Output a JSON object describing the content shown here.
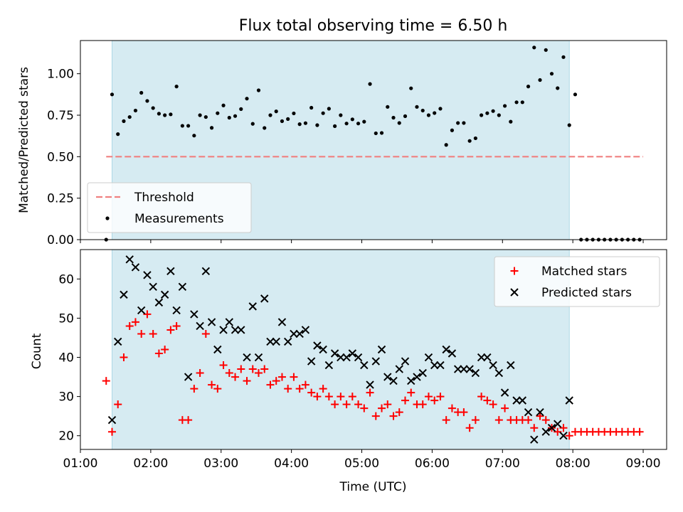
{
  "chart_data": [
    {
      "type": "scatter",
      "title": "Flux total observing time = 6.50 h",
      "xlabel": "",
      "ylabel": "Matched/Predicted stars",
      "xlim": [
        "01:00",
        "09:20"
      ],
      "ylim": [
        0,
        1.2
      ],
      "yticks": [
        {
          "value": 0.0,
          "label": "0.00"
        },
        {
          "value": 0.25,
          "label": "0.25"
        },
        {
          "value": 0.5,
          "label": "0.50"
        },
        {
          "value": 0.75,
          "label": "0.75"
        },
        {
          "value": 1.0,
          "label": "1.00"
        }
      ],
      "observing_window": {
        "start": "01:27",
        "end": "07:57",
        "color": "#add8e6"
      },
      "threshold": {
        "name": "Threshold",
        "value": 0.5,
        "start": "01:22",
        "end": "09:00",
        "color": "#f08080",
        "style": "dashed"
      },
      "series": [
        {
          "name": "Measurements",
          "color": "#000000",
          "marker": "dot",
          "x": [
            "01:22",
            "01:27",
            "01:32",
            "01:37",
            "01:42",
            "01:47",
            "01:52",
            "01:57",
            "02:02",
            "02:07",
            "02:12",
            "02:17",
            "02:22",
            "02:27",
            "02:32",
            "02:37",
            "02:42",
            "02:47",
            "02:52",
            "02:57",
            "03:02",
            "03:07",
            "03:12",
            "03:17",
            "03:22",
            "03:27",
            "03:32",
            "03:37",
            "03:42",
            "03:47",
            "03:52",
            "03:57",
            "04:02",
            "04:07",
            "04:12",
            "04:17",
            "04:22",
            "04:27",
            "04:32",
            "04:37",
            "04:42",
            "04:47",
            "04:52",
            "04:57",
            "05:02",
            "05:07",
            "05:12",
            "05:17",
            "05:22",
            "05:27",
            "05:32",
            "05:37",
            "05:42",
            "05:47",
            "05:52",
            "05:57",
            "06:02",
            "06:07",
            "06:12",
            "06:17",
            "06:22",
            "06:27",
            "06:32",
            "06:37",
            "06:42",
            "06:47",
            "06:52",
            "06:57",
            "07:02",
            "07:07",
            "07:12",
            "07:17",
            "07:22",
            "07:27",
            "07:32",
            "07:37",
            "07:42",
            "07:47",
            "07:52",
            "07:57",
            "08:02",
            "08:07",
            "08:12",
            "08:17",
            "08:22",
            "08:27",
            "08:32",
            "08:37",
            "08:42",
            "08:47",
            "08:52",
            "08:57"
          ],
          "y": [
            0.0,
            0.875,
            0.636,
            0.714,
            0.739,
            0.778,
            0.885,
            0.836,
            0.793,
            0.759,
            0.75,
            0.755,
            0.923,
            0.686,
            0.686,
            0.627,
            0.75,
            0.739,
            0.674,
            0.762,
            0.809,
            0.735,
            0.745,
            0.787,
            0.85,
            0.698,
            0.9,
            0.673,
            0.75,
            0.773,
            0.714,
            0.727,
            0.761,
            0.696,
            0.702,
            0.795,
            0.69,
            0.762,
            0.789,
            0.684,
            0.75,
            0.7,
            0.725,
            0.7,
            0.711,
            0.938,
            0.641,
            0.643,
            0.8,
            0.735,
            0.703,
            0.744,
            0.912,
            0.8,
            0.778,
            0.75,
            0.763,
            0.789,
            0.571,
            0.659,
            0.703,
            0.703,
            0.595,
            0.611,
            0.75,
            0.762,
            0.775,
            0.75,
            0.806,
            0.711,
            0.828,
            0.828,
            0.923,
            1.158,
            0.962,
            1.143,
            1.0,
            0.913,
            1.1,
            0.69,
            0.875,
            0.0,
            0.0,
            0.0,
            0.0,
            0.0,
            0.0,
            0.0,
            0.0,
            0.0,
            0.0,
            0.0
          ]
        }
      ],
      "legend": {
        "placement": "lower-left",
        "entries": [
          "Threshold",
          "Measurements"
        ]
      }
    },
    {
      "type": "scatter",
      "title": "",
      "xlabel": "Time (UTC)",
      "ylabel": "Count",
      "xlim": [
        "01:00",
        "09:20"
      ],
      "ylim": [
        16.5,
        67.5
      ],
      "yticks": [
        {
          "value": 20,
          "label": "20"
        },
        {
          "value": 30,
          "label": "30"
        },
        {
          "value": 40,
          "label": "40"
        },
        {
          "value": 50,
          "label": "50"
        },
        {
          "value": 60,
          "label": "60"
        }
      ],
      "xticks": [
        "01:00",
        "02:00",
        "03:00",
        "04:00",
        "05:00",
        "06:00",
        "07:00",
        "08:00",
        "09:00"
      ],
      "observing_window": {
        "start": "01:27",
        "end": "07:57",
        "color": "#add8e6"
      },
      "series": [
        {
          "name": "Matched stars",
          "color": "#ff0000",
          "marker": "plus",
          "x": [
            "01:22",
            "01:27",
            "01:32",
            "01:37",
            "01:42",
            "01:47",
            "01:52",
            "01:57",
            "02:02",
            "02:07",
            "02:12",
            "02:17",
            "02:22",
            "02:27",
            "02:32",
            "02:37",
            "02:42",
            "02:47",
            "02:52",
            "02:57",
            "03:02",
            "03:07",
            "03:12",
            "03:17",
            "03:22",
            "03:27",
            "03:32",
            "03:37",
            "03:42",
            "03:47",
            "03:52",
            "03:57",
            "04:02",
            "04:07",
            "04:12",
            "04:17",
            "04:22",
            "04:27",
            "04:32",
            "04:37",
            "04:42",
            "04:47",
            "04:52",
            "04:57",
            "05:02",
            "05:07",
            "05:12",
            "05:17",
            "05:22",
            "05:27",
            "05:32",
            "05:37",
            "05:42",
            "05:47",
            "05:52",
            "05:57",
            "06:02",
            "06:07",
            "06:12",
            "06:17",
            "06:22",
            "06:27",
            "06:32",
            "06:37",
            "06:42",
            "06:47",
            "06:52",
            "06:57",
            "07:02",
            "07:07",
            "07:12",
            "07:17",
            "07:22",
            "07:27",
            "07:32",
            "07:37",
            "07:42",
            "07:47",
            "07:52",
            "07:57",
            "08:02",
            "08:07",
            "08:12",
            "08:17",
            "08:22",
            "08:27",
            "08:32",
            "08:37",
            "08:42",
            "08:47",
            "08:52",
            "08:57"
          ],
          "y": [
            34,
            21,
            28,
            40,
            48,
            49,
            46,
            51,
            46,
            41,
            42,
            47,
            48,
            24,
            24,
            32,
            36,
            46,
            33,
            32,
            38,
            36,
            35,
            37,
            34,
            37,
            36,
            37,
            33,
            34,
            35,
            32,
            35,
            32,
            33,
            31,
            30,
            32,
            30,
            28,
            30,
            28,
            30,
            28,
            27,
            31,
            25,
            27,
            28,
            25,
            26,
            29,
            31,
            28,
            28,
            30,
            29,
            30,
            24,
            27,
            26,
            26,
            22,
            24,
            30,
            29,
            28,
            24,
            27,
            24,
            24,
            24,
            24,
            22,
            25,
            24,
            22,
            21,
            22,
            20,
            21,
            21,
            21,
            21,
            21,
            21,
            21,
            21,
            21,
            21,
            21,
            21
          ]
        },
        {
          "name": "Predicted stars",
          "color": "#000000",
          "marker": "x",
          "x": [
            "01:27",
            "01:32",
            "01:37",
            "01:42",
            "01:47",
            "01:52",
            "01:57",
            "02:02",
            "02:07",
            "02:12",
            "02:17",
            "02:22",
            "02:27",
            "02:32",
            "02:37",
            "02:42",
            "02:47",
            "02:52",
            "02:57",
            "03:02",
            "03:07",
            "03:12",
            "03:17",
            "03:22",
            "03:27",
            "03:32",
            "03:37",
            "03:42",
            "03:47",
            "03:52",
            "03:57",
            "04:02",
            "04:07",
            "04:12",
            "04:17",
            "04:22",
            "04:27",
            "04:32",
            "04:37",
            "04:42",
            "04:47",
            "04:52",
            "04:57",
            "05:02",
            "05:07",
            "05:12",
            "05:17",
            "05:22",
            "05:27",
            "05:32",
            "05:37",
            "05:42",
            "05:47",
            "05:52",
            "05:57",
            "06:02",
            "06:07",
            "06:12",
            "06:17",
            "06:22",
            "06:27",
            "06:32",
            "06:37",
            "06:42",
            "06:47",
            "06:52",
            "06:57",
            "07:02",
            "07:07",
            "07:12",
            "07:17",
            "07:22",
            "07:27",
            "07:32",
            "07:37",
            "07:42",
            "07:47",
            "07:52",
            "07:57"
          ],
          "y": [
            24,
            44,
            56,
            65,
            63,
            52,
            61,
            58,
            54,
            56,
            62,
            52,
            58,
            35,
            51,
            48,
            62,
            49,
            42,
            47,
            49,
            47,
            47,
            40,
            53,
            40,
            55,
            44,
            44,
            49,
            44,
            46,
            46,
            47,
            39,
            43,
            42,
            38,
            41,
            40,
            40,
            41,
            40,
            38,
            33,
            39,
            42,
            35,
            34,
            37,
            39,
            34,
            35,
            36,
            40,
            38,
            38,
            42,
            41,
            37,
            37,
            37,
            36,
            40,
            40,
            38,
            36,
            31,
            38,
            29,
            29,
            26,
            19,
            26,
            21,
            22,
            23,
            20,
            29
          ]
        }
      ],
      "legend": {
        "placement": "upper-right",
        "entries": [
          "Matched stars",
          "Predicted stars"
        ]
      }
    }
  ]
}
